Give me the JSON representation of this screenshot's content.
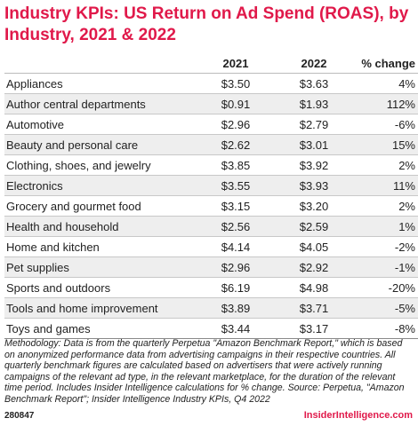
{
  "chart_data": {
    "type": "table",
    "title": "Industry KPIs: US Return on Ad Spend (ROAS), by Industry, 2021 & 2022",
    "columns": [
      "",
      "2021",
      "2022",
      "% change"
    ],
    "rows": [
      [
        "Appliances",
        "$3.50",
        "$3.63",
        "4%"
      ],
      [
        "Author central departments",
        "$0.91",
        "$1.93",
        "112%"
      ],
      [
        "Automotive",
        "$2.96",
        "$2.79",
        "-6%"
      ],
      [
        "Beauty and personal care",
        "$2.62",
        "$3.01",
        "15%"
      ],
      [
        "Clothing, shoes, and jewelry",
        "$3.85",
        "$3.92",
        "2%"
      ],
      [
        "Electronics",
        "$3.55",
        "$3.93",
        "11%"
      ],
      [
        "Grocery and gourmet food",
        "$3.15",
        "$3.20",
        "2%"
      ],
      [
        "Health and household",
        "$2.56",
        "$2.59",
        "1%"
      ],
      [
        "Home and kitchen",
        "$4.14",
        "$4.05",
        "-2%"
      ],
      [
        "Pet supplies",
        "$2.96",
        "$2.92",
        "-1%"
      ],
      [
        "Sports and outdoors",
        "$6.19",
        "$4.98",
        "-20%"
      ],
      [
        "Tools and home improvement",
        "$3.89",
        "$3.71",
        "-5%"
      ],
      [
        "Toys and games",
        "$3.44",
        "$3.17",
        "-8%"
      ]
    ],
    "note": "Methodology: Data is from the quarterly Perpetua \"Amazon Benchmark Report,\" which is based on anonymized performance data from advertising campaigns in their respective countries. All quarterly benchmark figures are calculated based on advertisers that were actively running campaigns of the relevant ad type, in the relevant marketplace, for the duration of the relevant time period. Includes Insider Intelligence calculations for % change. Source: Perpetua, \"Amazon Benchmark Report\"; Insider Intelligence Industry KPIs, Q4 2022",
    "chart_id": "280847",
    "brand": "InsiderIntelligence.com",
    "colors": {
      "title": "#e0194a",
      "shade": "#eeeeee",
      "text": "#222222"
    }
  }
}
